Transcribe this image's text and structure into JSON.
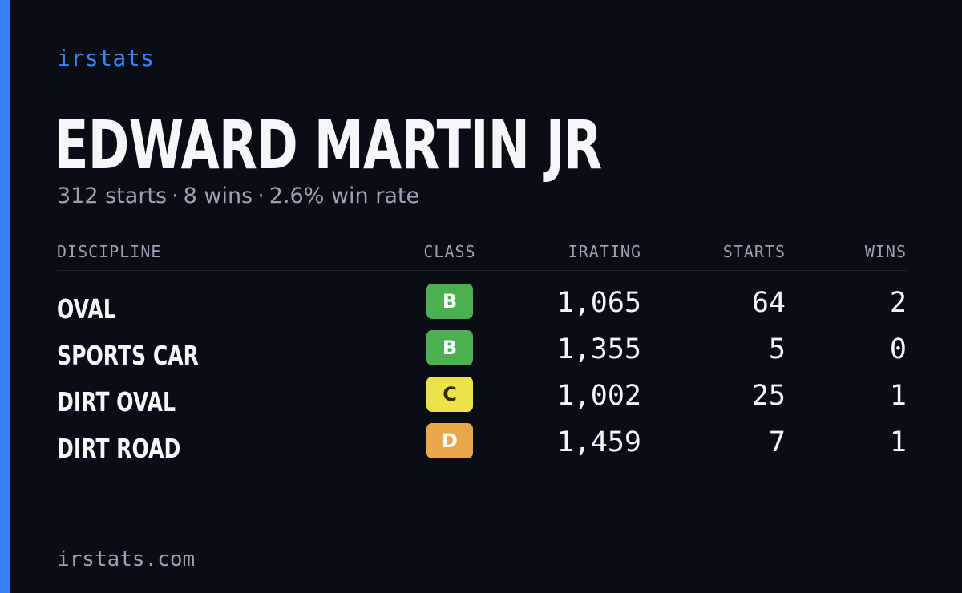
{
  "brand": {
    "label": "irstats",
    "accent_color": "#3b82f6"
  },
  "driver": {
    "name": "EDWARD MARTIN JR",
    "summary": {
      "starts": "312 starts",
      "wins": "8 wins",
      "win_rate": "2.6% win rate",
      "separator": "·"
    }
  },
  "table": {
    "headers": {
      "discipline": "DISCIPLINE",
      "class": "CLASS",
      "irating": "IRATING",
      "starts": "STARTS",
      "wins": "WINS"
    },
    "rows": [
      {
        "discipline": "OVAL",
        "class": "B",
        "class_color": "#4caf50",
        "class_text_color": "#ffffff",
        "irating": "1,065",
        "starts": "64",
        "wins": "2"
      },
      {
        "discipline": "SPORTS CAR",
        "class": "B",
        "class_color": "#4caf50",
        "class_text_color": "#ffffff",
        "irating": "1,355",
        "starts": "5",
        "wins": "0"
      },
      {
        "discipline": "DIRT OVAL",
        "class": "C",
        "class_color": "#ece24a",
        "class_text_color": "#2a2a1a",
        "irating": "1,002",
        "starts": "25",
        "wins": "1"
      },
      {
        "discipline": "DIRT ROAD",
        "class": "D",
        "class_color": "#eaa64a",
        "class_text_color": "#ffffff",
        "irating": "1,459",
        "starts": "7",
        "wins": "1"
      }
    ]
  },
  "footer": {
    "site": "irstats.com"
  }
}
